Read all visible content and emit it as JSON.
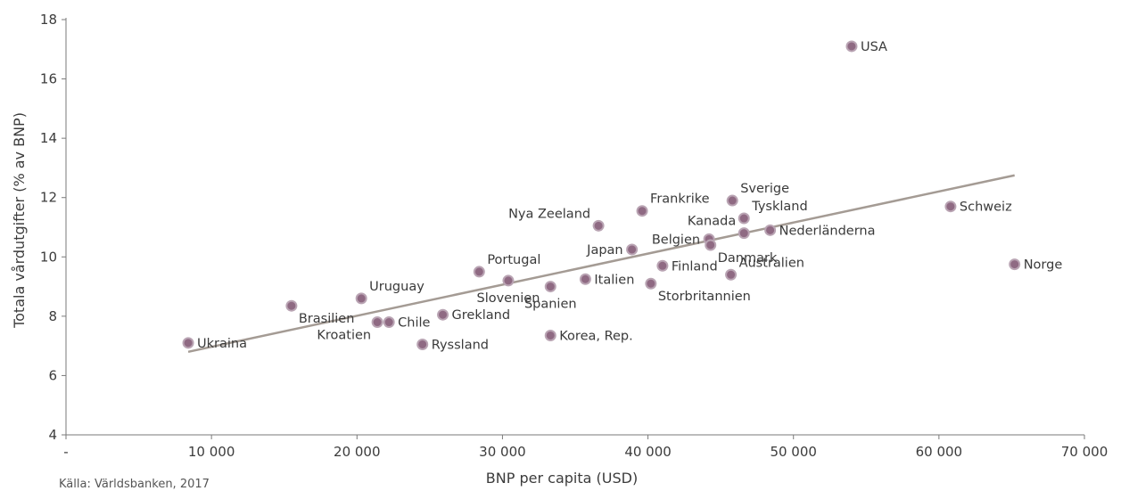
{
  "chart_data": {
    "type": "scatter",
    "xlabel": "BNP per capita (USD)",
    "ylabel": "Totala vårdutgifter (% av BNP)",
    "xlim": [
      0,
      70000
    ],
    "ylim": [
      4,
      18
    ],
    "xticks": [
      0,
      10000,
      20000,
      30000,
      40000,
      50000,
      60000,
      70000
    ],
    "xtick_labels": [
      "-",
      "10 000",
      "20 000",
      "30 000",
      "40 000",
      "50 000",
      "60 000",
      "70 000"
    ],
    "yticks": [
      4,
      6,
      8,
      10,
      12,
      14,
      16,
      18
    ],
    "ytick_labels": [
      "4",
      "6",
      "8",
      "10",
      "12",
      "14",
      "16",
      "18"
    ],
    "grid": false,
    "trendline": {
      "x": [
        8400,
        65200
      ],
      "y": [
        6.8,
        12.75
      ]
    },
    "points": [
      {
        "label": "USA",
        "x": 54000,
        "y": 17.1,
        "pos": "right"
      },
      {
        "label": "Schweiz",
        "x": 60800,
        "y": 11.7,
        "pos": "right"
      },
      {
        "label": "Norge",
        "x": 65200,
        "y": 9.75,
        "pos": "right"
      },
      {
        "label": "Sverige",
        "x": 45800,
        "y": 11.9,
        "pos": "above-right"
      },
      {
        "label": "Tyskland",
        "x": 46600,
        "y": 11.3,
        "pos": "above-right"
      },
      {
        "label": "Nederländerna",
        "x": 48400,
        "y": 10.9,
        "pos": "right"
      },
      {
        "label": "Kanada",
        "x": 46600,
        "y": 10.8,
        "pos": "above-left"
      },
      {
        "label": "Belgien",
        "x": 44200,
        "y": 10.6,
        "pos": "left"
      },
      {
        "label": "Danmark",
        "x": 44300,
        "y": 10.4,
        "pos": "below-right"
      },
      {
        "label": "Australien",
        "x": 45700,
        "y": 9.4,
        "pos": "above-right"
      },
      {
        "label": "Frankrike",
        "x": 39600,
        "y": 11.55,
        "pos": "above-right"
      },
      {
        "label": "Nya Zeeland",
        "x": 36600,
        "y": 11.05,
        "pos": "above-left"
      },
      {
        "label": "Japan",
        "x": 38900,
        "y": 10.25,
        "pos": "left"
      },
      {
        "label": "Finland",
        "x": 41000,
        "y": 9.7,
        "pos": "right"
      },
      {
        "label": "Storbritannien",
        "x": 40200,
        "y": 9.1,
        "pos": "below-right"
      },
      {
        "label": "Italien",
        "x": 35700,
        "y": 9.25,
        "pos": "right"
      },
      {
        "label": "Spanien",
        "x": 33300,
        "y": 9.0,
        "pos": "below"
      },
      {
        "label": "Korea, Rep.",
        "x": 33300,
        "y": 7.35,
        "pos": "right"
      },
      {
        "label": "Portugal",
        "x": 28400,
        "y": 9.5,
        "pos": "above-right"
      },
      {
        "label": "Slovenien",
        "x": 30400,
        "y": 9.2,
        "pos": "below"
      },
      {
        "label": "Grekland",
        "x": 25900,
        "y": 8.05,
        "pos": "right"
      },
      {
        "label": "Ryssland",
        "x": 24500,
        "y": 7.05,
        "pos": "right"
      },
      {
        "label": "Uruguay",
        "x": 20300,
        "y": 8.6,
        "pos": "above-right"
      },
      {
        "label": "Chile",
        "x": 22200,
        "y": 7.8,
        "pos": "right"
      },
      {
        "label": "Kroatien",
        "x": 21400,
        "y": 7.8,
        "pos": "below-left"
      },
      {
        "label": "Brasilien",
        "x": 15500,
        "y": 8.35,
        "pos": "below-right"
      },
      {
        "label": "Ukraina",
        "x": 8400,
        "y": 7.1,
        "pos": "right"
      }
    ],
    "colors": {
      "point_fill": "#8f6a83",
      "point_stroke": "#b9a4b3",
      "trendline": "#a49b94",
      "axis": "#7a7a7a"
    }
  },
  "source_note": "Källa: Världsbanken, 2017"
}
